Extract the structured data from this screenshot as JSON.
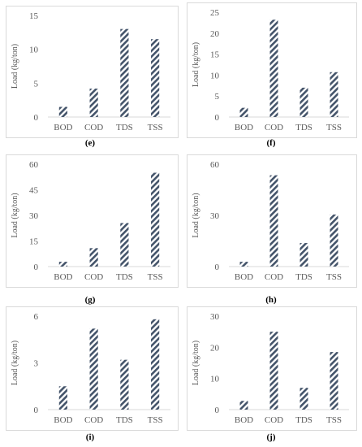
{
  "colors": {
    "bar_stripe": "#44546a",
    "axis": "#d9d9d9",
    "tick_text": "#595959",
    "frame": "#d9d9d9"
  },
  "chart_data": [
    {
      "type": "bar",
      "caption": "(e)",
      "ylabel": "Load (kg/ton)",
      "categories": [
        "BOD",
        "COD",
        "TDS",
        "TSS"
      ],
      "values": [
        1.5,
        4.2,
        13.0,
        11.5
      ],
      "yticks": [
        0,
        5,
        10,
        15
      ],
      "ylim": [
        0,
        15
      ]
    },
    {
      "type": "bar",
      "caption": "(f)",
      "ylabel": "Load (kg/ton)",
      "categories": [
        "BOD",
        "COD",
        "TDS",
        "TSS"
      ],
      "values": [
        2.2,
        23.2,
        7.0,
        10.7
      ],
      "yticks": [
        0,
        5,
        10,
        15,
        20,
        25
      ],
      "ylim": [
        0,
        25
      ]
    },
    {
      "type": "bar",
      "caption": "(g)",
      "ylabel": "Load (kg/ton)",
      "categories": [
        "BOD",
        "COD",
        "TDS",
        "TSS"
      ],
      "values": [
        2.8,
        10.8,
        25.5,
        55.0
      ],
      "yticks": [
        0,
        15,
        30,
        45,
        60
      ],
      "ylim": [
        0,
        60
      ]
    },
    {
      "type": "bar",
      "caption": "(h)",
      "ylabel": "Load (kg/ton)",
      "categories": [
        "BOD",
        "COD",
        "TDS",
        "TSS"
      ],
      "values": [
        2.8,
        53.5,
        13.8,
        30.5
      ],
      "yticks": [
        0,
        30,
        60
      ],
      "ylim": [
        0,
        60
      ]
    },
    {
      "type": "bar",
      "caption": "(i)",
      "ylabel": "Load (kg/ton)",
      "categories": [
        "BOD",
        "COD",
        "TDS",
        "TSS"
      ],
      "values": [
        1.5,
        5.2,
        3.2,
        5.8
      ],
      "yticks": [
        0,
        3,
        6
      ],
      "ylim": [
        0,
        6
      ]
    },
    {
      "type": "bar",
      "caption": "(j)",
      "ylabel": "Load (kg/ton)",
      "categories": [
        "BOD",
        "COD",
        "TDS",
        "TSS"
      ],
      "values": [
        2.8,
        25.0,
        7.0,
        18.5
      ],
      "yticks": [
        0,
        10,
        20,
        30
      ],
      "ylim": [
        0,
        30
      ]
    }
  ]
}
